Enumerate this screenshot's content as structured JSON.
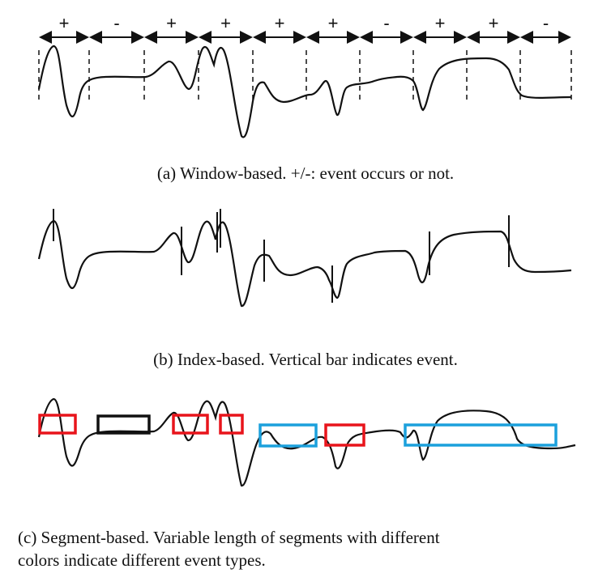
{
  "panel_a": {
    "signs": [
      "+",
      "-",
      "+",
      "+",
      "+",
      "+",
      "-",
      "+",
      "+",
      "-"
    ],
    "caption": "(a) Window-based. +/-: event occurs or not."
  },
  "panel_b": {
    "caption": "(b) Index-based. Vertical bar indicates event."
  },
  "panel_c": {
    "caption_line1": "(c) Segment-based. Variable length of segments with different",
    "caption_line2": "colors indicate different event types.",
    "segment_colors": [
      "#e8141b",
      "#111111",
      "#e8141b",
      "#e8141b",
      "#1ba0dc",
      "#e8141b",
      "#1ba0dc"
    ]
  },
  "colors": {
    "curve": "#111111",
    "red_segment": "#e8141b",
    "black_segment": "#111111",
    "blue_segment": "#1ba0dc"
  }
}
